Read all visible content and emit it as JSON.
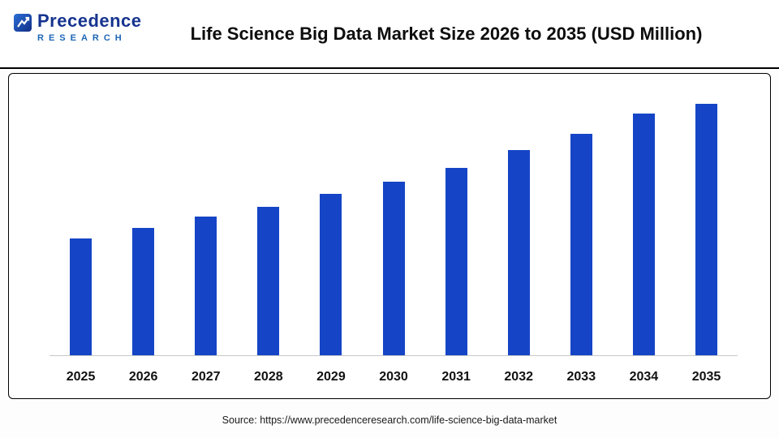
{
  "header": {
    "title": "Life Science Big Data Market Size 2026 to 2035 (USD Million)",
    "logo": {
      "line1": "Precedence",
      "line2": "RESEARCH",
      "icon": "precedence-logo-icon",
      "primary_color": "#16348f",
      "secondary_color": "#1d66b5"
    }
  },
  "footer": {
    "source": "Source: https://www.precedenceresearch.com/life-science-big-data-market"
  },
  "chart_data": {
    "type": "bar",
    "title": "Life Science Big Data Market Size 2026 to 2035 (USD Million)",
    "xlabel": "",
    "ylabel": "",
    "categories": [
      "2025",
      "2026",
      "2027",
      "2028",
      "2029",
      "2030",
      "2031",
      "2032",
      "2033",
      "2034",
      "2035"
    ],
    "values": [
      46.5,
      50.5,
      55,
      59,
      64,
      69,
      74.5,
      81.5,
      88,
      96,
      100
    ],
    "value_note": "No numeric axis or data labels shown in image; values are relative bar heights indexed to 2035 = 100",
    "ylim": [
      0,
      108
    ],
    "grid": false,
    "legend": "none",
    "bar_color": "#1545c6",
    "baseline_color": "#c8c8c8"
  }
}
